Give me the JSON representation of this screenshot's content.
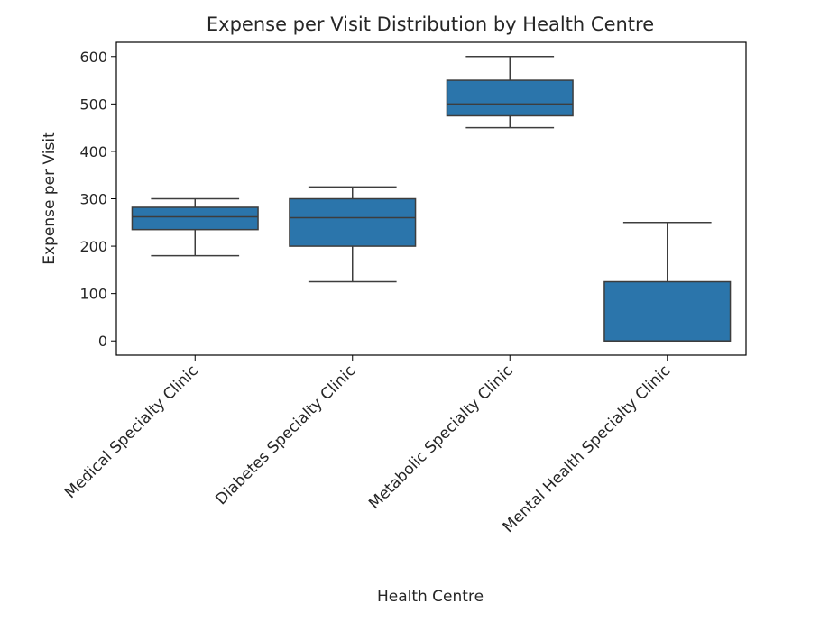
{
  "chart_data": {
    "type": "box",
    "title": "Expense per Visit Distribution by Health Centre",
    "xlabel": "Health Centre",
    "ylabel": "Expense per Visit",
    "ylim": [
      -30,
      630
    ],
    "yticks": [
      0,
      100,
      200,
      300,
      400,
      500,
      600
    ],
    "grid": false,
    "legend": "none",
    "box_color": "#2b75ab",
    "line_color": "#3d3d3d",
    "categories": [
      "Medical Specialty Clinic",
      "Diabetes Specialty Clinic",
      "Metabolic Specialty Clinic",
      "Mental Health Specialty Clinic"
    ],
    "boxes": [
      {
        "category": "Medical Specialty Clinic",
        "whisker_low": 180,
        "q1": 235,
        "median": 262,
        "q3": 282,
        "whisker_high": 300
      },
      {
        "category": "Diabetes Specialty Clinic",
        "whisker_low": 125,
        "q1": 200,
        "median": 260,
        "q3": 300,
        "whisker_high": 325
      },
      {
        "category": "Metabolic Specialty Clinic",
        "whisker_low": 450,
        "q1": 475,
        "median": 500,
        "q3": 550,
        "whisker_high": 600
      },
      {
        "category": "Mental Health Specialty Clinic",
        "whisker_low": 0,
        "q1": 0,
        "median": 0,
        "q3": 125,
        "whisker_high": 250
      }
    ]
  }
}
